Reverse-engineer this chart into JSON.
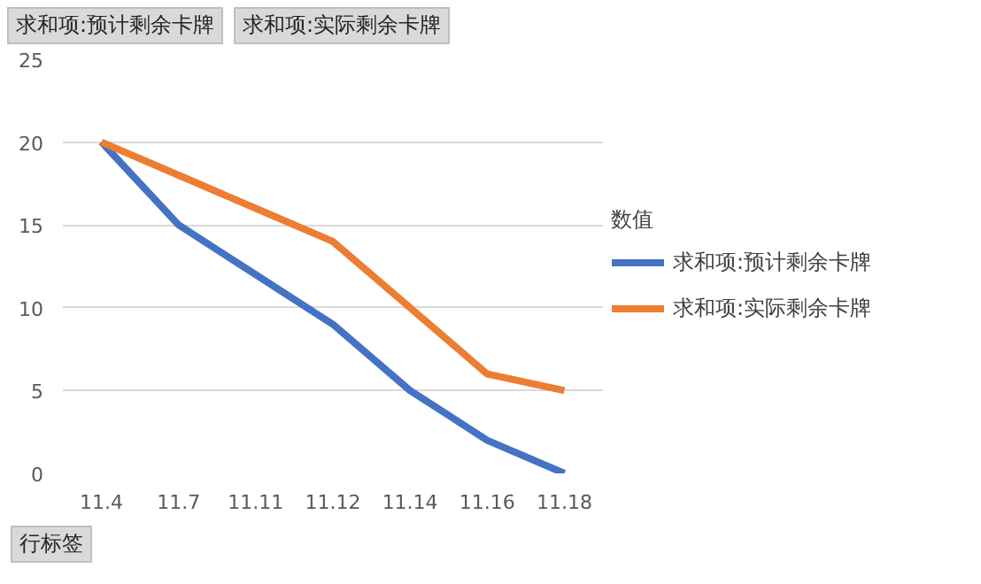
{
  "chart_data": {
    "type": "line",
    "categories": [
      "11.4",
      "11.7",
      "11.11",
      "11.12",
      "11.14",
      "11.16",
      "11.18"
    ],
    "series": [
      {
        "name": "求和项:预计剩余卡牌",
        "color": "#4472c4",
        "values": [
          20,
          15,
          12,
          9,
          5,
          2,
          0
        ]
      },
      {
        "name": "求和项:实际剩余卡牌",
        "color": "#ed7d31",
        "values": [
          20,
          18,
          16,
          14,
          10,
          6,
          5
        ]
      }
    ],
    "ylim": [
      0,
      25
    ],
    "yticks": [
      0,
      5,
      10,
      15,
      20,
      25
    ],
    "grid": "y",
    "legend": "right",
    "legend_title": "数值",
    "xlabel": "行标签",
    "annotations": [
      "求和项:预计剩余卡牌",
      "求和项:实际剩余卡牌"
    ],
    "marker": "none",
    "line_style": "solid"
  }
}
